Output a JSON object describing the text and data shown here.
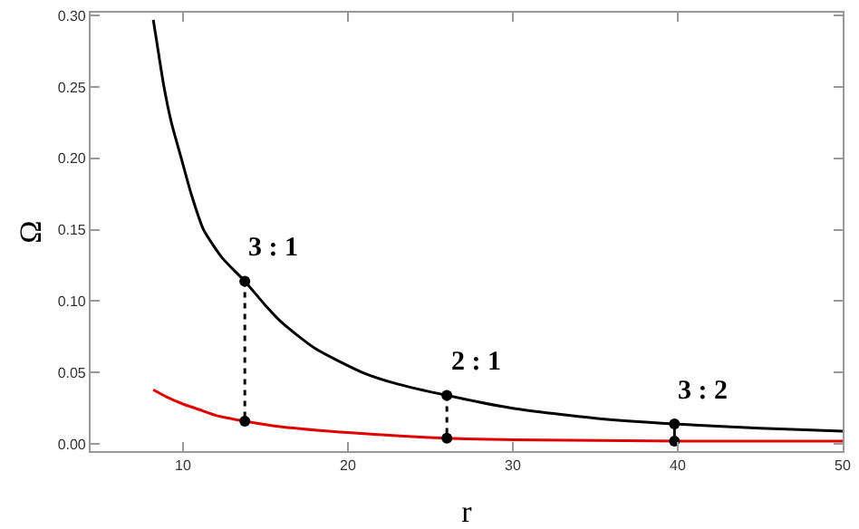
{
  "chart_data": {
    "type": "line",
    "xlabel": "r",
    "ylabel": "Ω",
    "xlim": [
      4.4,
      50
    ],
    "ylim": [
      -0.005,
      0.302
    ],
    "xticks": [
      10,
      20,
      30,
      40,
      50
    ],
    "yticks": [
      {
        "value": 0,
        "label": "0.00"
      },
      {
        "value": 0.05,
        "label": "0.05"
      },
      {
        "value": 0.1,
        "label": "0.10"
      },
      {
        "value": 0.15,
        "label": "0.15"
      },
      {
        "value": 0.2,
        "label": "0.20"
      },
      {
        "value": 0.25,
        "label": "0.25"
      },
      {
        "value": 0.3,
        "label": "0.30"
      }
    ],
    "series": [
      {
        "color": "#000000",
        "x": [
          8.2,
          8.5,
          8.85,
          9.3,
          9.9,
          10.5,
          11.25,
          12.4,
          13.75,
          15,
          16,
          18,
          20.9,
          23,
          26,
          30,
          35,
          39.8,
          45,
          50
        ],
        "values": [
          0.297,
          0.275,
          0.25,
          0.225,
          0.2,
          0.175,
          0.15,
          0.13,
          0.114,
          0.097,
          0.085,
          0.067,
          0.05,
          0.042,
          0.034,
          0.025,
          0.018,
          0.014,
          0.011,
          0.009
        ]
      },
      {
        "color": "#e00000",
        "x": [
          8.2,
          9,
          10,
          11,
          12,
          13.75,
          16,
          20,
          26,
          30,
          40,
          50
        ],
        "values": [
          0.038,
          0.033,
          0.028,
          0.024,
          0.02,
          0.016,
          0.012,
          0.008,
          0.004,
          0.003,
          0.002,
          0.002
        ]
      },
      {
        "color": "#000000",
        "line_style": "dotted",
        "marker": "circle",
        "x": [
          13.75,
          13.75
        ],
        "values": [
          0.114,
          0.016
        ]
      },
      {
        "color": "#000000",
        "line_style": "dotted",
        "marker": "circle",
        "x": [
          26,
          26
        ],
        "values": [
          0.034,
          0.004
        ]
      },
      {
        "color": "#000000",
        "marker": "circle",
        "x": [
          39.8,
          39.8
        ],
        "values": [
          0.014,
          0.002
        ]
      }
    ],
    "annotations": [
      {
        "text": "3 : 1",
        "x": 13.75,
        "y": 0.114
      },
      {
        "text": "2 : 1",
        "x": 26,
        "y": 0.034
      },
      {
        "text": "3 : 2",
        "x": 39.8,
        "y": 0.014
      }
    ]
  }
}
